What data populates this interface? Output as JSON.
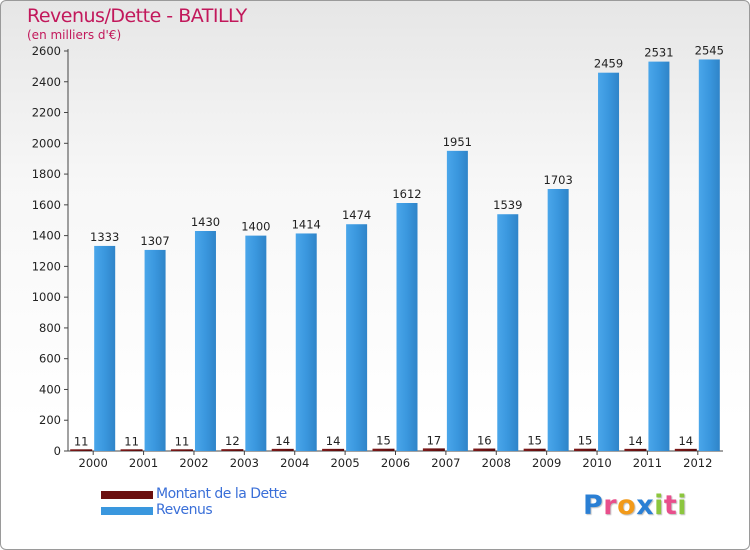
{
  "title": "Revenus/Dette - BATILLY",
  "subtitle": "(en milliers d'€)",
  "legend": [
    {
      "label": "Montant de la Dette",
      "color": "#6b0f0f"
    },
    {
      "label": "Revenus",
      "color": "#3a97de"
    }
  ],
  "logo": {
    "text": "Proxiti",
    "letters": [
      "P",
      "r",
      "o",
      "x",
      "i",
      "t",
      "i"
    ],
    "colors": [
      "#2a7fd4",
      "#e84f8c",
      "#f29a1a",
      "#2a7fd4",
      "#8cc63e",
      "#e84f8c",
      "#8cc63e"
    ]
  },
  "chart_data": {
    "type": "bar",
    "categories": [
      "2000",
      "2001",
      "2002",
      "2003",
      "2004",
      "2005",
      "2006",
      "2007",
      "2008",
      "2009",
      "2010",
      "2011",
      "2012"
    ],
    "series": [
      {
        "name": "Montant de la Dette",
        "color": "#6b0f0f",
        "values": [
          11,
          11,
          11,
          12,
          14,
          14,
          15,
          17,
          16,
          15,
          15,
          14,
          14
        ]
      },
      {
        "name": "Revenus",
        "color": "#3a97de",
        "values": [
          1333,
          1307,
          1430,
          1400,
          1414,
          1474,
          1612,
          1951,
          1539,
          1703,
          2459,
          2531,
          2545
        ]
      }
    ],
    "ylim": [
      0,
      2600
    ],
    "yticks": [
      0,
      200,
      400,
      600,
      800,
      1000,
      1200,
      1400,
      1600,
      1800,
      2000,
      2200,
      2400,
      2600
    ],
    "grid": false,
    "legend_position": "bottom-left"
  }
}
